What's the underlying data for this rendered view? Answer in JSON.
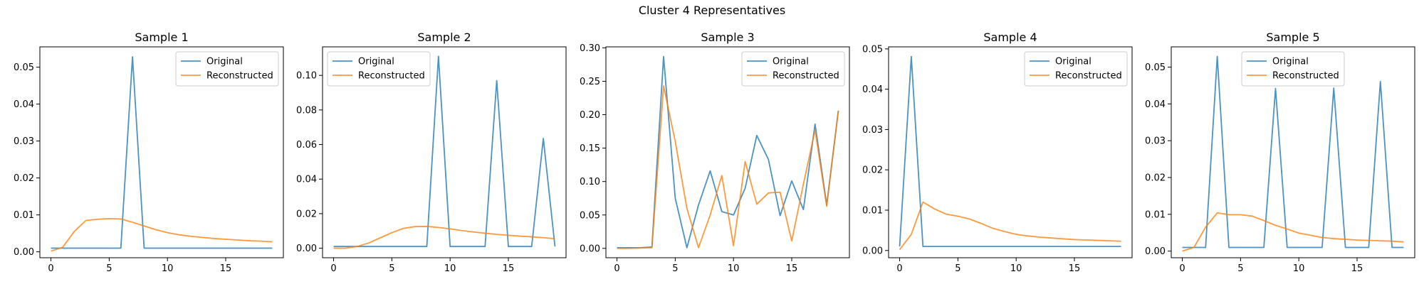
{
  "suptitle": "Cluster 4 Representatives",
  "colors": {
    "original": "#1f77b4",
    "reconstructed": "#ff7f0e"
  },
  "chart_data": [
    {
      "type": "line",
      "title": "Sample 1",
      "xlabel": "",
      "ylabel": "",
      "x": [
        0,
        1,
        2,
        3,
        4,
        5,
        6,
        7,
        8,
        9,
        10,
        11,
        12,
        13,
        14,
        15,
        16,
        17,
        18,
        19
      ],
      "xlim": [
        -0.95,
        19.95
      ],
      "ylim": [
        -0.0016,
        0.0555
      ],
      "xticks": [
        0,
        5,
        10,
        15
      ],
      "yticks": [
        0,
        0.01,
        0.02,
        0.03,
        0.04,
        0.05
      ],
      "ytick_labels": [
        "0.00",
        "0.01",
        "0.02",
        "0.03",
        "0.04",
        "0.05"
      ],
      "legend": "upper right",
      "series": [
        {
          "name": "Original",
          "values": [
            0.001,
            0.001,
            0.001,
            0.001,
            0.001,
            0.001,
            0.001,
            0.0528,
            0.001,
            0.001,
            0.001,
            0.001,
            0.001,
            0.001,
            0.001,
            0.001,
            0.001,
            0.001,
            0.001,
            0.001
          ]
        },
        {
          "name": "Reconstructed",
          "values": [
            0.0002,
            0.0012,
            0.0055,
            0.0085,
            0.0088,
            0.009,
            0.0089,
            0.008,
            0.007,
            0.006,
            0.0052,
            0.0046,
            0.0042,
            0.0039,
            0.0036,
            0.0034,
            0.0032,
            0.003,
            0.0029,
            0.0027
          ]
        }
      ]
    },
    {
      "type": "line",
      "title": "Sample 2",
      "xlabel": "",
      "ylabel": "",
      "x": [
        0,
        1,
        2,
        3,
        4,
        5,
        6,
        7,
        8,
        9,
        10,
        11,
        12,
        13,
        14,
        15,
        16,
        17,
        18,
        19
      ],
      "xlim": [
        -0.95,
        19.95
      ],
      "ylim": [
        -0.0055,
        0.1165
      ],
      "xticks": [
        0,
        5,
        10,
        15
      ],
      "yticks": [
        0,
        0.02,
        0.04,
        0.06,
        0.08,
        0.1
      ],
      "ytick_labels": [
        "0.00",
        "0.02",
        "0.04",
        "0.06",
        "0.08",
        "0.10"
      ],
      "legend": "upper left",
      "series": [
        {
          "name": "Original",
          "values": [
            0.001,
            0.001,
            0.001,
            0.001,
            0.001,
            0.001,
            0.001,
            0.001,
            0.001,
            0.111,
            0.001,
            0.001,
            0.001,
            0.001,
            0.097,
            0.001,
            0.001,
            0.001,
            0.0635,
            0.001
          ]
        },
        {
          "name": "Reconstructed",
          "values": [
            0.0,
            0.0,
            0.001,
            0.003,
            0.006,
            0.009,
            0.0115,
            0.0125,
            0.0126,
            0.012,
            0.0112,
            0.0102,
            0.0094,
            0.0087,
            0.008,
            0.0075,
            0.007,
            0.0066,
            0.0061,
            0.0055
          ]
        }
      ]
    },
    {
      "type": "line",
      "title": "Sample 3",
      "xlabel": "",
      "ylabel": "",
      "x": [
        0,
        1,
        2,
        3,
        4,
        5,
        6,
        7,
        8,
        9,
        10,
        11,
        12,
        13,
        14,
        15,
        16,
        17,
        18,
        19
      ],
      "xlim": [
        -0.95,
        19.95
      ],
      "ylim": [
        -0.014,
        0.3015
      ],
      "xticks": [
        0,
        5,
        10,
        15
      ],
      "yticks": [
        0,
        0.05,
        0.1,
        0.15,
        0.2,
        0.25,
        0.3
      ],
      "ytick_labels": [
        "0.00",
        "0.05",
        "0.10",
        "0.15",
        "0.20",
        "0.25",
        "0.30"
      ],
      "legend": "upper right",
      "series": [
        {
          "name": "Original",
          "values": [
            0.001,
            0.001,
            0.001,
            0.002,
            0.287,
            0.075,
            0.001,
            0.065,
            0.116,
            0.055,
            0.05,
            0.09,
            0.169,
            0.133,
            0.049,
            0.101,
            0.058,
            0.186,
            0.065,
            0.206
          ]
        },
        {
          "name": "Reconstructed",
          "values": [
            0.0,
            0.0,
            0.0005,
            0.001,
            0.243,
            0.16,
            0.06,
            0.001,
            0.05,
            0.109,
            0.004,
            0.13,
            0.066,
            0.083,
            0.084,
            0.011,
            0.096,
            0.177,
            0.063,
            0.206
          ]
        }
      ]
    },
    {
      "type": "line",
      "title": "Sample 4",
      "xlabel": "",
      "ylabel": "",
      "x": [
        0,
        1,
        2,
        3,
        4,
        5,
        6,
        7,
        8,
        9,
        10,
        11,
        12,
        13,
        14,
        15,
        16,
        17,
        18,
        19
      ],
      "xlim": [
        -0.95,
        19.95
      ],
      "ylim": [
        -0.0018,
        0.0505
      ],
      "xticks": [
        0,
        5,
        10,
        15
      ],
      "yticks": [
        0,
        0.01,
        0.02,
        0.03,
        0.04,
        0.05
      ],
      "ytick_labels": [
        "0.00",
        "0.01",
        "0.02",
        "0.03",
        "0.04",
        "0.05"
      ],
      "legend": "upper right",
      "series": [
        {
          "name": "Original",
          "values": [
            0.001,
            0.0481,
            0.001,
            0.001,
            0.001,
            0.001,
            0.001,
            0.001,
            0.001,
            0.001,
            0.001,
            0.001,
            0.001,
            0.001,
            0.001,
            0.001,
            0.001,
            0.001,
            0.001,
            0.001
          ]
        },
        {
          "name": "Reconstructed",
          "values": [
            0.0002,
            0.004,
            0.012,
            0.0103,
            0.009,
            0.0085,
            0.0078,
            0.0067,
            0.0055,
            0.0047,
            0.004,
            0.0036,
            0.0033,
            0.0031,
            0.0029,
            0.0027,
            0.0026,
            0.0025,
            0.0024,
            0.0023
          ]
        }
      ]
    },
    {
      "type": "line",
      "title": "Sample 5",
      "xlabel": "",
      "ylabel": "",
      "x": [
        0,
        1,
        2,
        3,
        4,
        5,
        6,
        7,
        8,
        9,
        10,
        11,
        12,
        13,
        14,
        15,
        16,
        17,
        18,
        19
      ],
      "xlim": [
        -0.95,
        19.95
      ],
      "ylim": [
        -0.0018,
        0.0555
      ],
      "xticks": [
        0,
        5,
        10,
        15
      ],
      "yticks": [
        0,
        0.01,
        0.02,
        0.03,
        0.04,
        0.05
      ],
      "ytick_labels": [
        "0.00",
        "0.01",
        "0.02",
        "0.03",
        "0.04",
        "0.05"
      ],
      "legend": "upper center",
      "series": [
        {
          "name": "Original",
          "values": [
            0.001,
            0.001,
            0.001,
            0.0529,
            0.001,
            0.001,
            0.001,
            0.001,
            0.0442,
            0.001,
            0.001,
            0.001,
            0.001,
            0.0443,
            0.001,
            0.001,
            0.001,
            0.0461,
            0.001,
            0.001
          ]
        },
        {
          "name": "Reconstructed",
          "values": [
            0.0,
            0.001,
            0.0065,
            0.0104,
            0.0099,
            0.0099,
            0.0095,
            0.0083,
            0.007,
            0.006,
            0.0049,
            0.0043,
            0.0037,
            0.0034,
            0.0032,
            0.003,
            0.0029,
            0.0028,
            0.0027,
            0.0025
          ]
        }
      ]
    }
  ]
}
